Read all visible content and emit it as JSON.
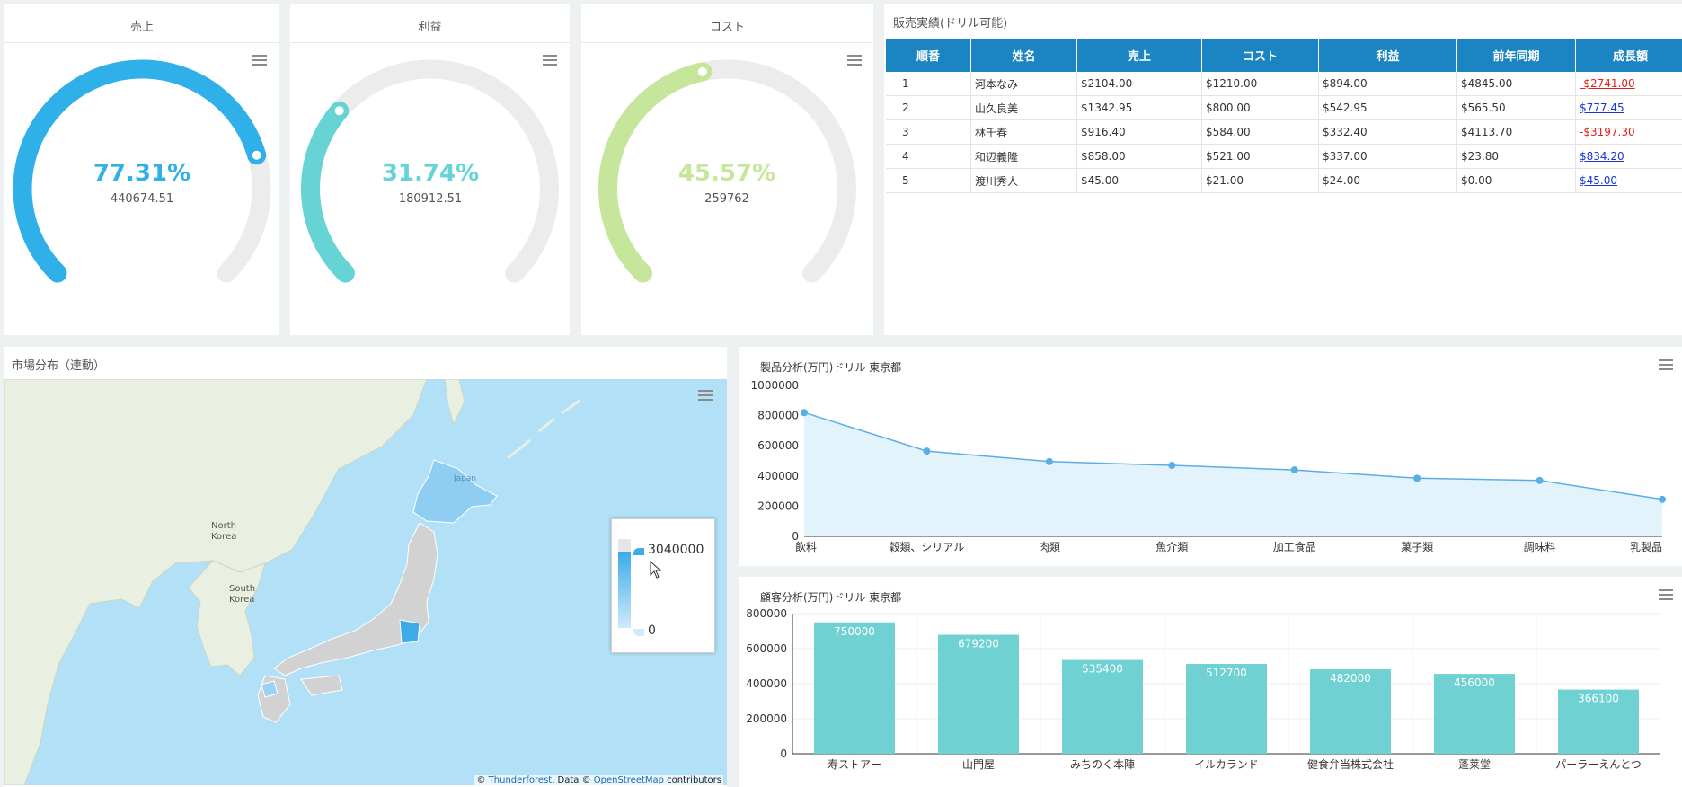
{
  "gauges": [
    {
      "title": "売上",
      "percent_text": "77.31%",
      "value_text": "440674.51",
      "fraction": 0.7731,
      "color": "#2fb0e8"
    },
    {
      "title": "利益",
      "percent_text": "31.74%",
      "value_text": "180912.51",
      "fraction": 0.3174,
      "color": "#66d3d4"
    },
    {
      "title": "コスト",
      "percent_text": "45.57%",
      "value_text": "259762",
      "fraction": 0.4557,
      "color": "#c5e69b"
    }
  ],
  "sales_table": {
    "title": "販売実績(ドリル可能)",
    "headers": [
      "順番",
      "姓名",
      "売上",
      "コスト",
      "利益",
      "前年同期",
      "成長額"
    ],
    "rows": [
      [
        "1",
        "河本なみ",
        "$2104.00",
        "$1210.00",
        "$894.00",
        "$4845.00",
        "-$2741.00"
      ],
      [
        "2",
        "山久良美",
        "$1342.95",
        "$800.00",
        "$542.95",
        "$565.50",
        "$777.45"
      ],
      [
        "3",
        "林千春",
        "$916.40",
        "$584.00",
        "$332.40",
        "$4113.70",
        "-$3197.30"
      ],
      [
        "4",
        "和辺義隆",
        "$858.00",
        "$521.00",
        "$337.00",
        "$23.80",
        "$834.20"
      ],
      [
        "5",
        "渡川秀人",
        "$45.00",
        "$21.00",
        "$24.00",
        "$0.00",
        "$45.00"
      ]
    ]
  },
  "map": {
    "title": "市場分布（連動）",
    "labels": {
      "japan": "Japan",
      "north_korea_1": "North",
      "north_korea_2": "Korea",
      "south_korea_1": "South",
      "south_korea_2": "Korea"
    },
    "legend_max": "3040000",
    "legend_min": "0",
    "attribution": {
      "prefix": "© ",
      "thunderforest": "Thunderforest",
      "mid": ", Data © ",
      "osm": "OpenStreetMap",
      "suffix": " contributors"
    }
  },
  "chart_data": [
    {
      "type": "area",
      "title": "製品分析(万円)ドリル 東京都",
      "categories": [
        "飲料",
        "穀類、シリアル",
        "肉類",
        "魚介類",
        "加工食品",
        "菓子類",
        "調味料",
        "乳製品"
      ],
      "values": [
        820000,
        565000,
        495000,
        470000,
        440000,
        385000,
        370000,
        245000
      ],
      "ylim": [
        0,
        1000000
      ],
      "yticks": [
        0,
        200000,
        400000,
        600000,
        800000,
        1000000
      ]
    },
    {
      "type": "bar",
      "title": "顧客分析(万円)ドリル 東京都",
      "categories": [
        "寿ストアー",
        "山門屋",
        "みちのく本陣",
        "イルカランド",
        "健食弁当株式会社",
        "蓬莱堂",
        "パーラーえんとつ"
      ],
      "values": [
        750000,
        679200,
        535400,
        512700,
        482000,
        456000,
        366100
      ],
      "ylim": [
        0,
        800000
      ],
      "yticks": [
        0,
        200000,
        400000,
        600000,
        800000
      ]
    }
  ]
}
